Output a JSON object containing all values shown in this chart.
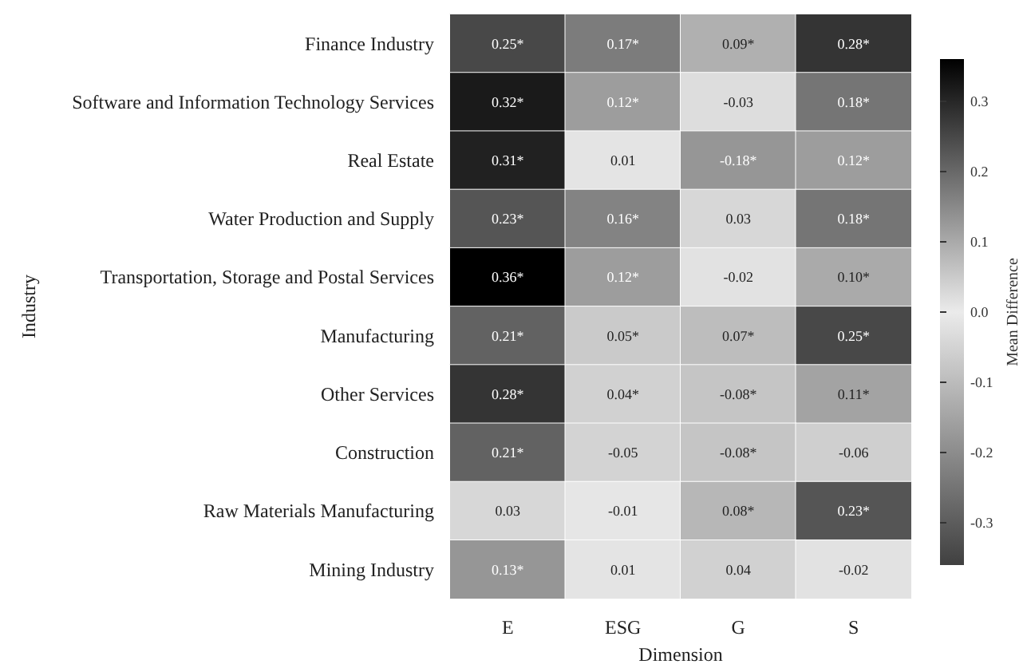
{
  "chart_data": {
    "type": "heatmap",
    "xlabel": "Dimension",
    "ylabel": "Industry",
    "clabel": "Mean Difference",
    "categories": [
      "E",
      "ESG",
      "G",
      "S"
    ],
    "y_categories": [
      "Finance Industry",
      "Software and Information Technology Services",
      "Real Estate",
      "Water Production and Supply",
      "Transportation, Storage and Postal Services",
      "Manufacturing",
      "Other Services",
      "Construction",
      "Raw Materials Manufacturing",
      "Mining Industry"
    ],
    "cells": [
      [
        0.25,
        0.17,
        0.09,
        0.28
      ],
      [
        0.32,
        0.12,
        -0.03,
        0.18
      ],
      [
        0.31,
        0.01,
        -0.18,
        0.12
      ],
      [
        0.23,
        0.16,
        0.03,
        0.18
      ],
      [
        0.36,
        0.12,
        -0.02,
        0.1
      ],
      [
        0.21,
        0.05,
        0.07,
        0.25
      ],
      [
        0.28,
        0.04,
        -0.08,
        0.11
      ],
      [
        0.21,
        -0.05,
        -0.08,
        -0.06
      ],
      [
        0.03,
        -0.01,
        0.08,
        0.23
      ],
      [
        0.13,
        0.01,
        0.04,
        -0.02
      ]
    ],
    "cell_labels": [
      [
        "0.25*",
        "0.17*",
        "0.09*",
        "0.28*"
      ],
      [
        "0.32*",
        "0.12*",
        "-0.03",
        "0.18*"
      ],
      [
        "0.31*",
        "0.01",
        "-0.18*",
        "0.12*"
      ],
      [
        "0.23*",
        "0.16*",
        "0.03",
        "0.18*"
      ],
      [
        "0.36*",
        "0.12*",
        "-0.02",
        "0.10*"
      ],
      [
        "0.21*",
        "0.05*",
        "0.07*",
        "0.25*"
      ],
      [
        "0.28*",
        "0.04*",
        "-0.08*",
        "0.11*"
      ],
      [
        "0.21*",
        "-0.05",
        "-0.08*",
        "-0.06"
      ],
      [
        "0.03",
        "-0.01",
        "0.08*",
        "0.23*"
      ],
      [
        "0.13*",
        "0.01",
        "0.04",
        "-0.02"
      ]
    ],
    "clim": [
      -0.36,
      0.36
    ],
    "cticks": [
      -0.3,
      -0.2,
      -0.1,
      {
        "value": 0,
        "label": "0.0"
      },
      0.1,
      0.2,
      0.3
    ]
  }
}
